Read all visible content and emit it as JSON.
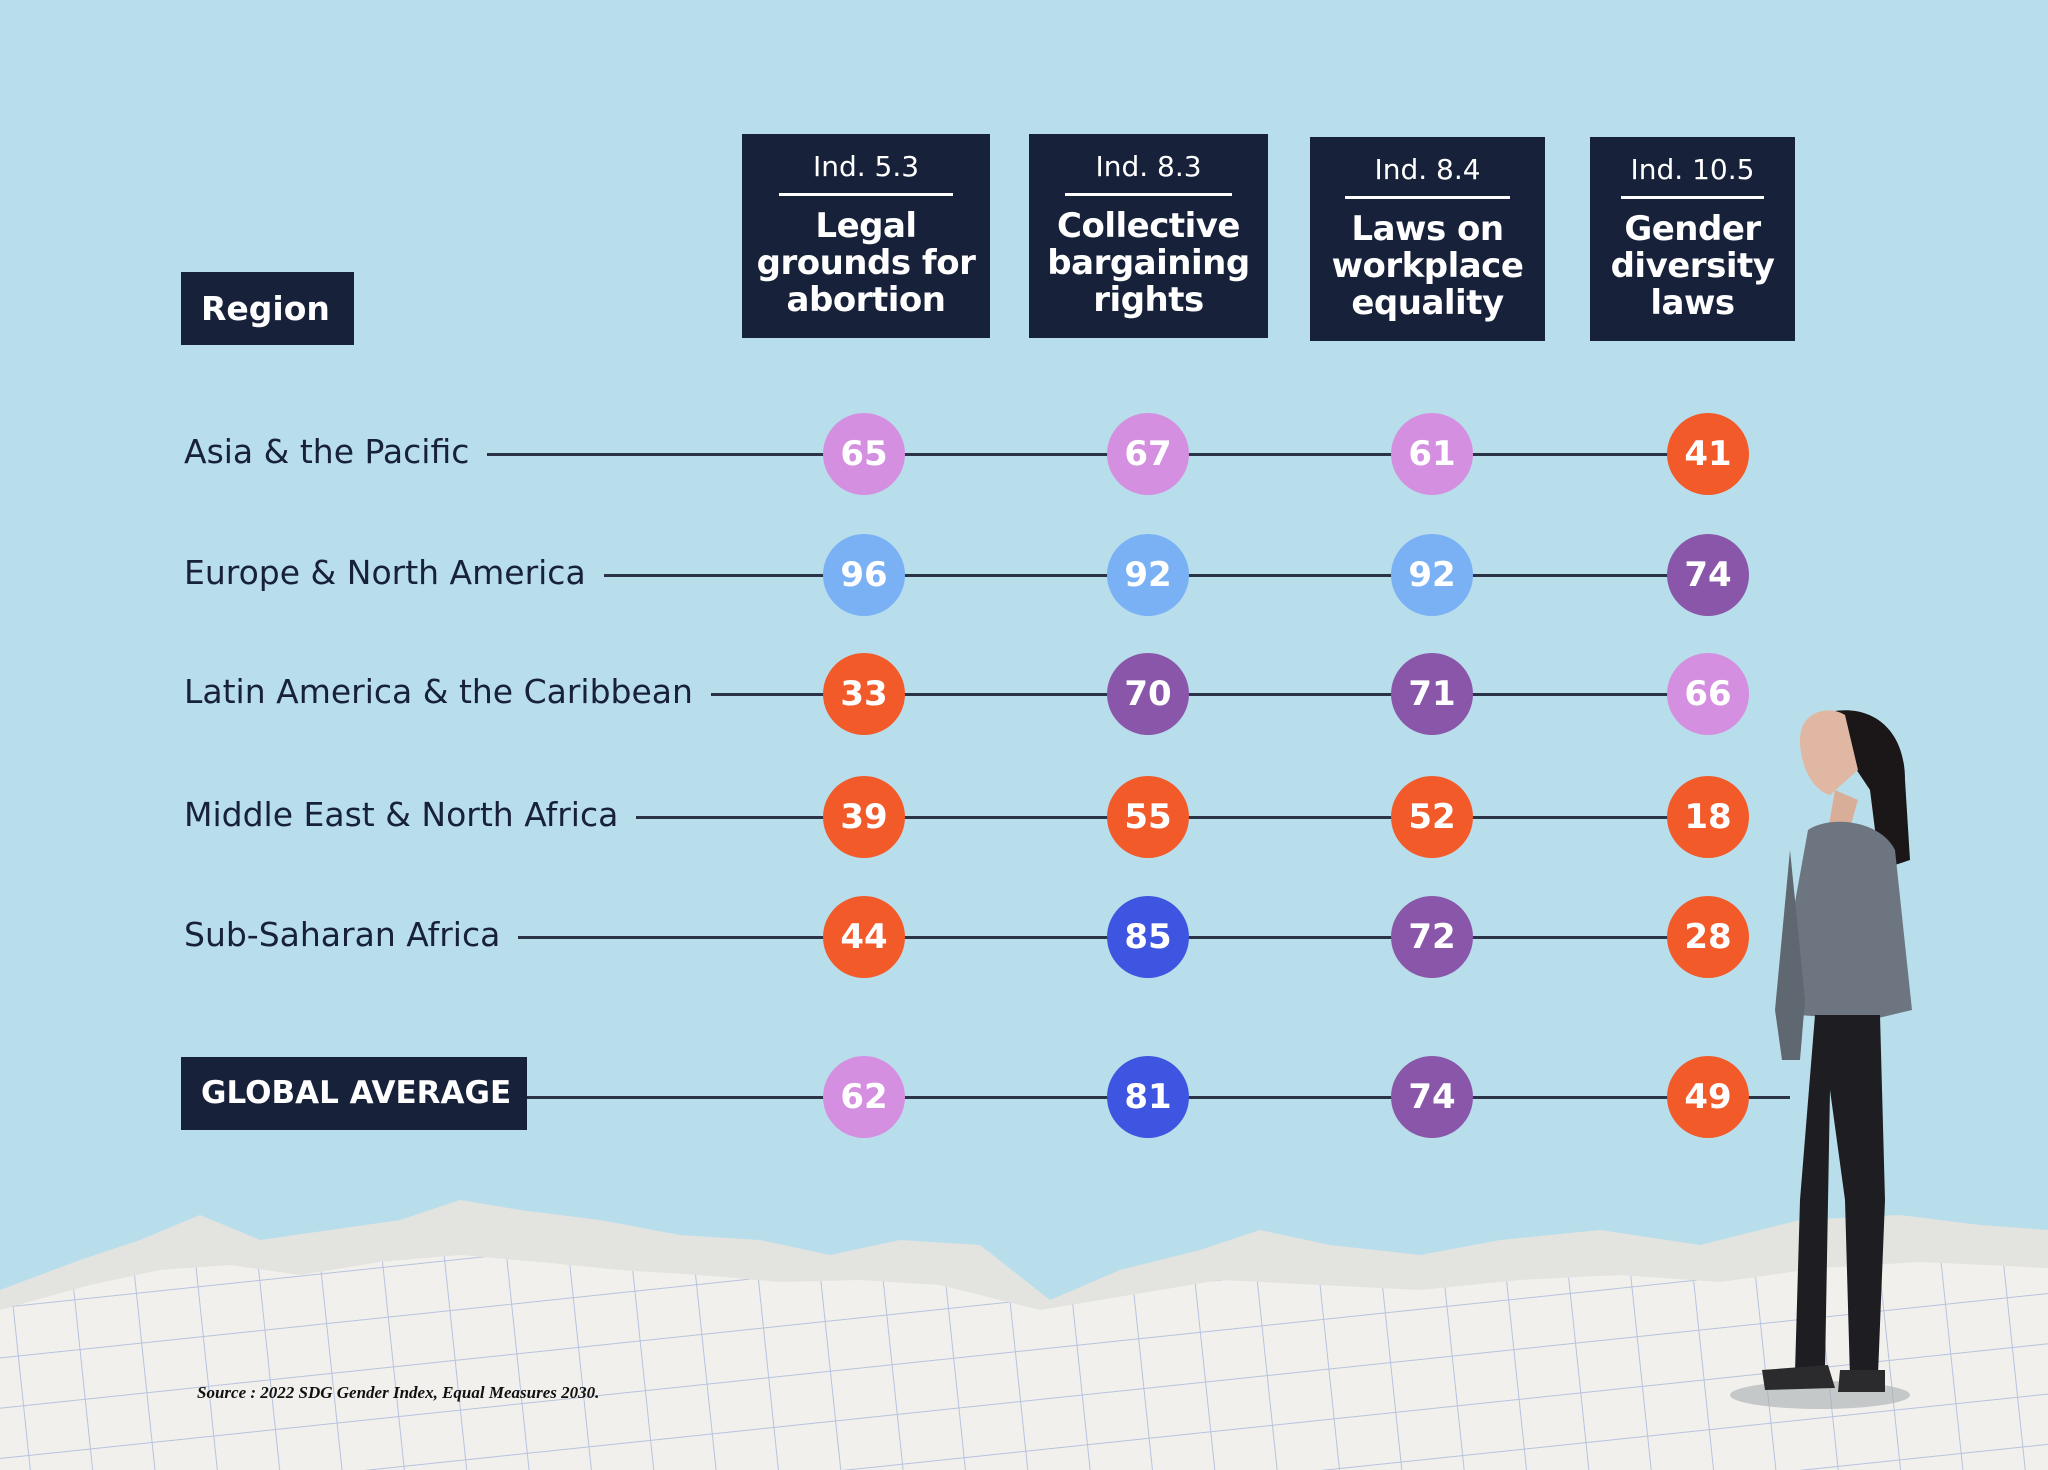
{
  "chart_data": {
    "type": "table",
    "row_header": "Region",
    "columns": [
      {
        "indicator": "Ind. 5.3",
        "name": "Legal grounds for abortion",
        "lines": [
          "Legal",
          "grounds for",
          "abortion"
        ]
      },
      {
        "indicator": "Ind. 8.3",
        "name": "Collective bargaining rights",
        "lines": [
          "Collective",
          "bargaining",
          "rights"
        ]
      },
      {
        "indicator": "Ind. 8.4",
        "name": "Laws on workplace equality",
        "lines": [
          "Laws on",
          "workplace",
          "equality"
        ]
      },
      {
        "indicator": "Ind. 10.5",
        "name": "Gender diversity laws",
        "lines": [
          "Gender",
          "diversity",
          "laws"
        ]
      }
    ],
    "rows": [
      {
        "region": "Asia & the Pacific",
        "values": [
          65,
          67,
          61,
          41
        ]
      },
      {
        "region": "Europe & North America",
        "values": [
          96,
          92,
          92,
          74
        ]
      },
      {
        "region": "Latin America & the Caribbean",
        "values": [
          33,
          70,
          71,
          66
        ]
      },
      {
        "region": "Middle East & North Africa",
        "values": [
          39,
          55,
          52,
          18
        ]
      },
      {
        "region": "Sub-Saharan Africa",
        "values": [
          44,
          85,
          72,
          28
        ]
      }
    ],
    "global_average": {
      "label": "GLOBAL AVERAGE",
      "values": [
        62,
        81,
        74,
        49
      ]
    },
    "color_bins": [
      {
        "min": 0,
        "max": 59,
        "color": "#f25a2a"
      },
      {
        "min": 60,
        "max": 69,
        "color": "#d58fe0"
      },
      {
        "min": 70,
        "max": 79,
        "color": "#8a56aa"
      },
      {
        "min": 80,
        "max": 89,
        "color": "#3d55e0"
      },
      {
        "min": 90,
        "max": 100,
        "color": "#7ab1f5"
      }
    ]
  },
  "source": "Source : 2022 SDG Gender Index, Equal Measures 2030.",
  "colors": {
    "background": "#b9deeb",
    "header": "#18213a",
    "paper": "#f1f0ec"
  }
}
